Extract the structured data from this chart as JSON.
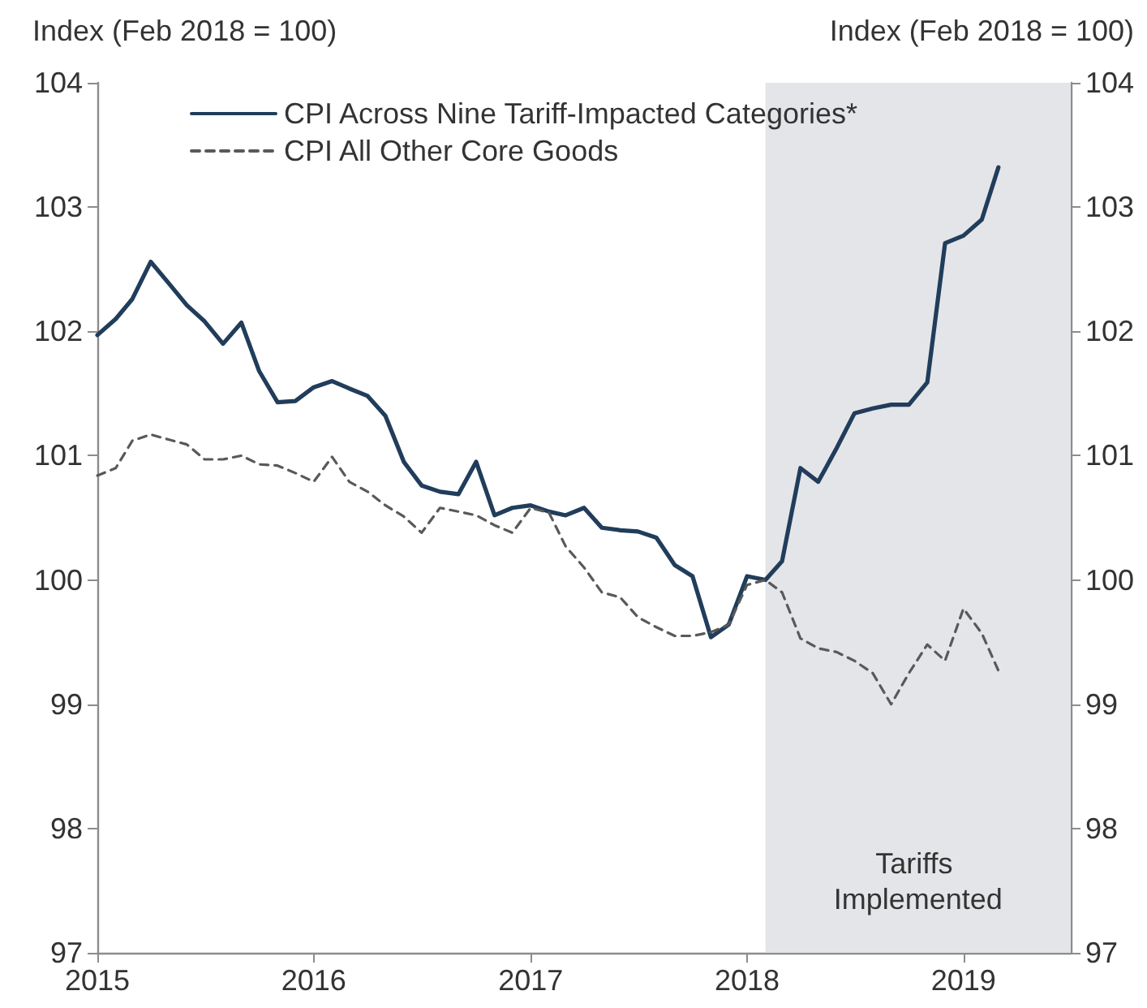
{
  "chart_data": {
    "type": "line",
    "ylabel": "Index (Feb 2018 = 100)",
    "y2label": "Index (Feb 2018 = 100)",
    "x": [
      "2015-01",
      "2015-02",
      "2015-03",
      "2015-04",
      "2015-05",
      "2015-06",
      "2015-07",
      "2015-08",
      "2015-09",
      "2015-10",
      "2015-11",
      "2015-12",
      "2016-01",
      "2016-02",
      "2016-03",
      "2016-04",
      "2016-05",
      "2016-06",
      "2016-07",
      "2016-08",
      "2016-09",
      "2016-10",
      "2016-11",
      "2016-12",
      "2017-01",
      "2017-02",
      "2017-03",
      "2017-04",
      "2017-05",
      "2017-06",
      "2017-07",
      "2017-08",
      "2017-09",
      "2017-10",
      "2017-11",
      "2017-12",
      "2018-01",
      "2018-02",
      "2018-03",
      "2018-04",
      "2018-05",
      "2018-06",
      "2018-07",
      "2018-08",
      "2018-09",
      "2018-10",
      "2018-11",
      "2018-12",
      "2019-01",
      "2019-02",
      "2019-03"
    ],
    "series": [
      {
        "name": "CPI Across Nine Tariff-Impacted Categories*",
        "color": "#213d5b",
        "line_style": "solid",
        "values": [
          101.97,
          102.1,
          102.26,
          102.56,
          102.39,
          102.21,
          102.08,
          101.9,
          102.07,
          101.68,
          101.43,
          101.44,
          101.55,
          101.6,
          101.54,
          101.48,
          101.32,
          100.95,
          100.76,
          100.71,
          100.69,
          100.95,
          100.52,
          100.58,
          100.6,
          100.55,
          100.52,
          100.58,
          100.42,
          100.4,
          100.39,
          100.34,
          100.12,
          100.03,
          99.54,
          99.64,
          100.03,
          100.0,
          100.15,
          100.9,
          100.79,
          101.06,
          101.34,
          101.38,
          101.41,
          101.41,
          101.59,
          102.71,
          102.77,
          102.9,
          103.32
        ]
      },
      {
        "name": "CPI All Other Core Goods",
        "color": "#595959",
        "line_style": "dashed",
        "values": [
          100.84,
          100.9,
          101.12,
          101.17,
          101.13,
          101.09,
          100.97,
          100.97,
          101.0,
          100.93,
          100.92,
          100.86,
          100.79,
          100.99,
          100.79,
          100.71,
          100.6,
          100.51,
          100.38,
          100.58,
          100.55,
          100.52,
          100.44,
          100.38,
          100.58,
          100.54,
          100.27,
          100.1,
          99.9,
          99.86,
          99.7,
          99.62,
          99.55,
          99.55,
          99.58,
          99.64,
          99.96,
          100.0,
          99.9,
          99.53,
          99.45,
          99.42,
          99.35,
          99.25,
          99.0,
          99.25,
          99.48,
          99.35,
          99.77,
          99.57,
          99.27
        ]
      }
    ],
    "xlim": [
      "2015-01",
      "2019-07"
    ],
    "xticks": [
      "2015",
      "2016",
      "2017",
      "2018",
      "2019"
    ],
    "ylim": [
      97,
      104
    ],
    "yticks": [
      97,
      98,
      99,
      100,
      101,
      102,
      103,
      104
    ],
    "y2lim": [
      97,
      104
    ],
    "y2ticks": [
      97,
      98,
      99,
      100,
      101,
      102,
      103,
      104
    ],
    "bands": [
      {
        "axis": "x",
        "from": "2018-02",
        "to": "2019-07",
        "label": "Tariffs Implemented",
        "color": "#e4e5e8"
      }
    ],
    "grid": false,
    "legend": "top left",
    "marker": "none"
  }
}
